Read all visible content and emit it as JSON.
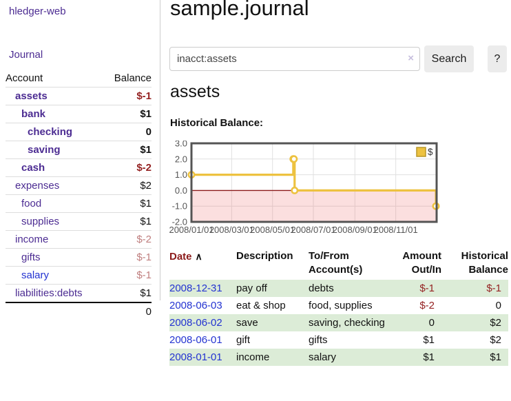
{
  "app": {
    "title": "hledger-web",
    "nav_journal": "Journal"
  },
  "sidebar": {
    "table": {
      "account_header": "Account",
      "balance_header": "Balance",
      "rows": [
        {
          "account": "assets",
          "balance": "$-1",
          "indent": 1,
          "bold": true
        },
        {
          "account": "bank",
          "balance": "$1",
          "indent": 2,
          "bold": true
        },
        {
          "account": "checking",
          "balance": "0",
          "indent": 3,
          "bold": true
        },
        {
          "account": "saving",
          "balance": "$1",
          "indent": 3,
          "bold": true
        },
        {
          "account": "cash",
          "balance": "$-2",
          "indent": 2,
          "bold": true
        },
        {
          "account": "expenses",
          "balance": "$2",
          "indent": 1,
          "bold": false
        },
        {
          "account": "food",
          "balance": "$1",
          "indent": 2,
          "bold": false
        },
        {
          "account": "supplies",
          "balance": "$1",
          "indent": 2,
          "bold": false
        },
        {
          "account": "income",
          "balance": "$-2",
          "indent": 1,
          "bold": false
        },
        {
          "account": "gifts",
          "balance": "$-1",
          "indent": 2,
          "bold": false
        },
        {
          "account": "salary",
          "balance": "$-1",
          "indent": 2,
          "bold": false,
          "link_style": "blue"
        },
        {
          "account": "liabilities:debts",
          "balance": "$1",
          "indent": 1,
          "bold": false
        }
      ],
      "total": "0"
    }
  },
  "main": {
    "title": "sample.journal",
    "search": {
      "value": "inacct:assets",
      "clear_icon": "×",
      "button": "Search",
      "help_button": "?"
    },
    "account_heading": "assets",
    "chart_label": "Historical Balance:"
  },
  "chart_data": {
    "type": "line",
    "title": "Historical Balance",
    "step": true,
    "legend": [
      {
        "label": "$",
        "color": "#edc240"
      }
    ],
    "legend_position": "top-right",
    "grid": true,
    "x_start": "2008-01-01",
    "x_end": "2009-01-01",
    "x_tick_labels": [
      "2008/01/01",
      "2008/03/01",
      "2008/05/01",
      "2008/07/01",
      "2008/09/01",
      "2008/11/01"
    ],
    "y_tick_labels": [
      "3.0",
      "2.0",
      "1.0",
      "0.0",
      "-1.0",
      "-2.0"
    ],
    "ylim": [
      -2,
      3
    ],
    "points": [
      {
        "date": "2008-01-01",
        "value": 1
      },
      {
        "date": "2008-06-01",
        "value": 2
      },
      {
        "date": "2008-06-02",
        "value": 2
      },
      {
        "date": "2008-06-03",
        "value": 0
      },
      {
        "date": "2008-12-31",
        "value": -1
      }
    ],
    "series_color": "#edc240",
    "marker_fill": "#ffffff",
    "negative_region_color": "rgba(235,110,110,0.22)",
    "zero_line_color": "#8b1a1a",
    "grid_color": "#e0e0e0",
    "border_color": "#545454",
    "tick_label_color": "#545454"
  },
  "register": {
    "sort_icon": "∧",
    "headers": [
      {
        "label": "Date",
        "sorted": true
      },
      {
        "label": "Description"
      },
      {
        "label": "To/From Account(s)"
      },
      {
        "label": "Amount Out/In",
        "align": "right"
      },
      {
        "label": "Historical Balance",
        "align": "right"
      }
    ],
    "rows": [
      {
        "date": "2008-12-31",
        "description": "pay off",
        "accounts": "debts",
        "amount": "$-1",
        "balance": "$-1"
      },
      {
        "date": "2008-06-03",
        "description": "eat & shop",
        "accounts": "food, supplies",
        "amount": "$-2",
        "balance": "0"
      },
      {
        "date": "2008-06-02",
        "description": "save",
        "accounts": "saving, checking",
        "amount": "0",
        "balance": "$2"
      },
      {
        "date": "2008-06-01",
        "description": "gift",
        "accounts": "gifts",
        "amount": "$1",
        "balance": "$2"
      },
      {
        "date": "2008-01-01",
        "description": "income",
        "accounts": "salary",
        "amount": "$1",
        "balance": "$1"
      }
    ]
  }
}
